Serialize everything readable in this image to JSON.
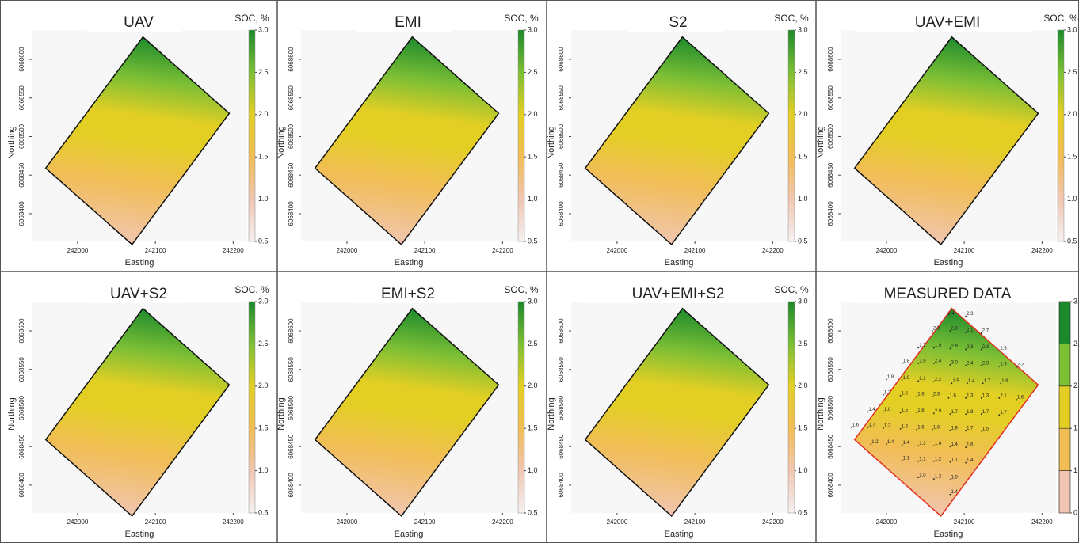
{
  "chart_data": {
    "type": "map-grid",
    "xlabel": "Easting",
    "ylabel": "Northing",
    "xlim": [
      241941,
      242218
    ],
    "ylim": [
      6068364,
      6068638
    ],
    "xticks": [
      242000,
      242100,
      242200
    ],
    "yticks": [
      6068400,
      6068450,
      6068500,
      6068550,
      6068600
    ],
    "clim": [
      0.5,
      3.0
    ],
    "cticks": [
      0.5,
      {
        "value": 1,
        "label": "1.0"
      },
      1.5,
      {
        "value": 2,
        "label": "2.0"
      },
      2.5,
      {
        "value": 3,
        "label": "3.0"
      }
    ],
    "colormap": [
      "#f4f1f1",
      "#f1c6b2",
      "#f1bd55",
      "#e3cf24",
      "#7cbf35",
      "#1c8a2c"
    ],
    "field": {
      "x": [
        241959,
        242084,
        242195,
        242070
      ],
      "y": [
        6068459,
        6068629,
        6068530,
        6068360
      ]
    },
    "panels": [
      {
        "title": "UAV",
        "legend_title": "SOC, %"
      },
      {
        "title": "EMI",
        "legend_title": "SOC, %"
      },
      {
        "title": "S2",
        "legend_title": "SOC, %"
      },
      {
        "title": "UAV+EMI",
        "legend_title": "SOC, %"
      },
      {
        "title": "UAV+S2",
        "legend_title": "SOC, %"
      },
      {
        "title": "EMI+S2",
        "legend_title": "SOC, %"
      },
      {
        "title": "UAV+EMI+S2",
        "legend_title": "SOC, %"
      },
      {
        "title": "MEASURED DATA",
        "discrete": true,
        "x": [
          242078,
          242102,
          242059,
          242082,
          242102,
          242122,
          242041,
          242061,
          242082,
          242102,
          242122,
          242145,
          242020,
          242041,
          242061,
          242082,
          242102,
          242122,
          242145,
          242167,
          242000,
          242020,
          242041,
          242061,
          242084,
          242104,
          242124,
          242147,
          241996,
          242018,
          242039,
          242059,
          242080,
          242102,
          242122,
          242145,
          242167,
          241976,
          241996,
          242018,
          242039,
          242061,
          242082,
          242102,
          242122,
          242145,
          241955,
          241976,
          241996,
          242018,
          242039,
          242059,
          242082,
          242102,
          242122,
          241980,
          242000,
          242020,
          242041,
          242061,
          242082,
          242102,
          242020,
          242041,
          242061,
          242082,
          242102,
          242041,
          242061,
          242082,
          242082
        ],
        "y": [
          6068619,
          6068619,
          6068600,
          6068600,
          6068598,
          6068597,
          6068578,
          6068578,
          6068577,
          6068576,
          6068576,
          6068574,
          6068558,
          6068558,
          6068558,
          6068556,
          6068555,
          6068555,
          6068554,
          6068553,
          6068537,
          6068536,
          6068535,
          6068534,
          6068532,
          6068532,
          6068532,
          6068532,
          6068517,
          6068516,
          6068515,
          6068515,
          6068513,
          6068513,
          6068513,
          6068513,
          6068511,
          6068495,
          6068495,
          6068494,
          6068494,
          6068493,
          6068492,
          6068492,
          6068492,
          6068491,
          6068475,
          6068475,
          6068474,
          6068473,
          6068472,
          6068472,
          6068471,
          6068471,
          6068470,
          6068453,
          6068453,
          6068452,
          6068451,
          6068451,
          6068450,
          6068449,
          6068432,
          6068431,
          6068431,
          6068430,
          6068429,
          6068410,
          6068408,
          6068407,
          6068388
        ],
        "values": [
          2.4,
          2.3,
          2.3,
          2.3,
          2.1,
          2.7,
          1.7,
          1.9,
          2.8,
          2.3,
          2.3,
          2.5,
          1.8,
          1.9,
          2.4,
          3,
          2.4,
          2.3,
          1.9,
          2.2,
          1.8,
          1.9,
          2.1,
          2.2,
          1.5,
          1.4,
          1.7,
          1.8,
          1.7,
          1.5,
          1.6,
          2.3,
          1.6,
          1.3,
          1.3,
          2.1,
          1.6,
          1.4,
          1,
          1.5,
          1.8,
          2,
          1.7,
          1.8,
          1.7,
          1.7,
          1.6,
          1.7,
          1.2,
          1.6,
          1.6,
          1.6,
          1.9,
          1.7,
          1.5,
          1.2,
          1.4,
          1.4,
          1.3,
          1.4,
          1.4,
          1.6,
          1.1,
          1.1,
          1.2,
          1.1,
          1.4,
          1,
          1.2,
          1.9,
          1.4
        ],
        "value_labels": [
          "2.4",
          "2.3",
          "2.3",
          "2.3",
          "2.1",
          "2.7",
          "1.7",
          "1.9",
          "2.8",
          "2.3",
          "2.3",
          "2.5",
          "1.8",
          "1.9",
          "2.4",
          "3.0",
          "2.4",
          "2.3",
          "1.9",
          "2.2",
          "1.8",
          "1.9",
          "2.1",
          "2.2",
          "1.5",
          "1.4",
          "1.7",
          "1.8",
          "1.7",
          "1.5",
          "1.6",
          "2.3",
          "1.6",
          "1.3",
          "1.3",
          "2.1",
          "1.6",
          "1.4",
          "1.0",
          "1.5",
          "1.8",
          "2.0",
          "1.7",
          "1.8",
          "1.7",
          "1.7",
          "1.6",
          "1.7",
          "1.2",
          "1.6",
          "1.6",
          "1.6",
          "1.9",
          "1.7",
          "1.5",
          "1.2",
          "1.4",
          "1.4",
          "1.3",
          "1.4",
          "1.4",
          "1.6",
          "1.1",
          "1.1",
          "1.2",
          "1.1",
          "1.4",
          "1.0",
          "1.2",
          "1.9",
          "1.4"
        ]
      }
    ]
  }
}
